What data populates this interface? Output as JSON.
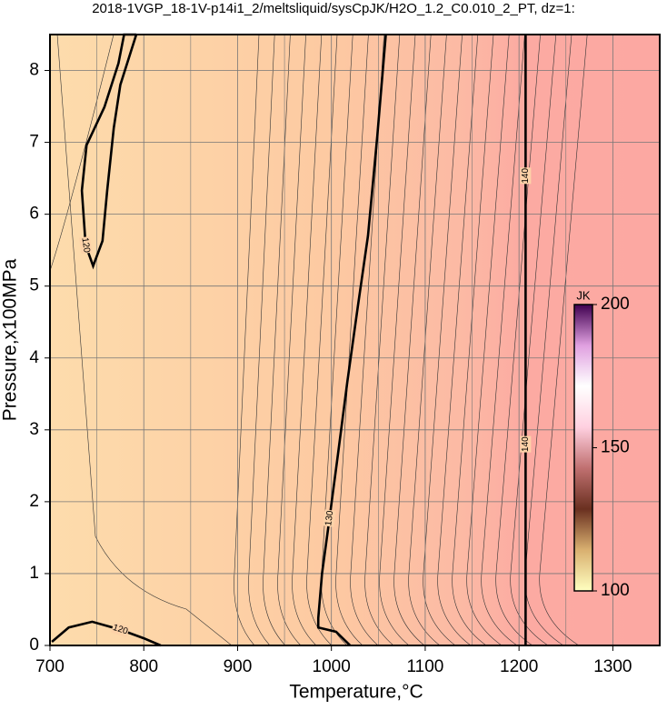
{
  "chart_data": {
    "type": "contour",
    "title": "2018-1VGP_18-1V-p14i1_2/meltsliquid/sysCpJK/H2O_1.2_C0.010_2_PT, dz=1:",
    "xlabel": "Temperature,°C",
    "ylabel": "Pressure,x100MPa",
    "xlim": [
      700,
      1350
    ],
    "ylim": [
      0,
      8.5
    ],
    "xticks": [
      700,
      800,
      900,
      1000,
      1100,
      1200,
      1300
    ],
    "yticks": [
      0,
      1,
      2,
      3,
      4,
      5,
      6,
      7,
      8
    ],
    "grid": true,
    "contours": [
      {
        "level": 120,
        "x": [
          792,
          779,
          773,
          758,
          739,
          734,
          738,
          746,
          756,
          761,
          768,
          775,
          792
        ],
        "y": [
          8.5,
          8.5,
          8.1,
          7.49,
          6.96,
          6.33,
          5.57,
          5.28,
          5.63,
          6.33,
          7.2,
          7.8,
          8.5
        ]
      },
      {
        "level": 120,
        "x": [
          702,
          720,
          745,
          775,
          800,
          818
        ],
        "y": [
          0.05,
          0.25,
          0.33,
          0.22,
          0.1,
          0
        ]
      },
      {
        "level": 130,
        "x": [
          1058,
          1049,
          1039,
          1028,
          1017,
          1007,
          998,
          990,
          986,
          986,
          1005,
          1020
        ],
        "y": [
          8.5,
          7.1,
          5.7,
          4.7,
          3.67,
          2.66,
          1.77,
          1.0,
          0.38,
          0.25,
          0.19,
          0
        ]
      },
      {
        "level": 140,
        "x": [
          1207,
          1207,
          1207
        ],
        "y": [
          0,
          2.8,
          8.5
        ]
      }
    ],
    "colorbar": {
      "label": "JK",
      "lim": [
        100,
        200
      ],
      "ticks": [
        100,
        150,
        200
      ],
      "colors": [
        "#ffffc0",
        "#d9b070",
        "#6a3020",
        "#c07070",
        "#ffd0e0",
        "#ffffff",
        "#e0a0e0",
        "#400050"
      ]
    }
  }
}
